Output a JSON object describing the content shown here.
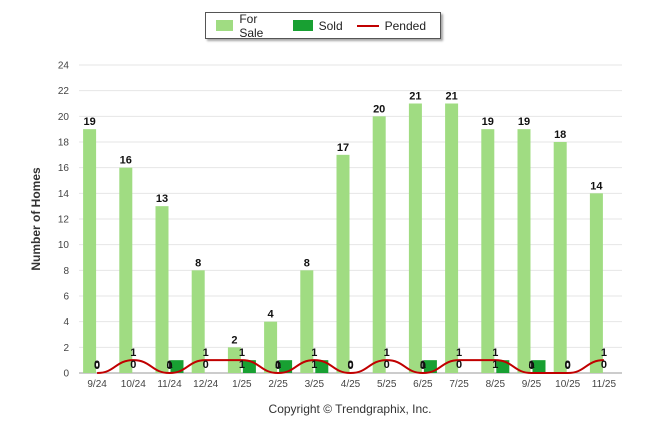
{
  "chart_data": {
    "type": "bar",
    "ylabel": "Number of Homes",
    "ylim": [
      0,
      24
    ],
    "yticks": [
      0,
      2,
      4,
      6,
      8,
      10,
      12,
      14,
      16,
      18,
      20,
      22,
      24
    ],
    "categories": [
      "9/24",
      "10/24",
      "11/24",
      "12/24",
      "1/25",
      "2/25",
      "3/25",
      "4/25",
      "5/25",
      "6/25",
      "7/25",
      "8/25",
      "9/25",
      "10/25",
      "11/25"
    ],
    "series": [
      {
        "name": "For Sale",
        "kind": "bar",
        "color": "#a0dc82",
        "values": [
          19,
          16,
          13,
          8,
          2,
          4,
          8,
          17,
          20,
          21,
          21,
          19,
          19,
          18,
          14
        ]
      },
      {
        "name": "Sold",
        "kind": "bar",
        "color": "#18a032",
        "values": [
          0,
          0,
          1,
          0,
          1,
          1,
          1,
          0,
          0,
          1,
          0,
          1,
          1,
          0,
          0
        ]
      },
      {
        "name": "Pended",
        "kind": "line",
        "color": "#c00000",
        "values": [
          0,
          1,
          0,
          1,
          1,
          0,
          1,
          0,
          1,
          0,
          1,
          1,
          0,
          0,
          1
        ]
      }
    ],
    "grid": true,
    "legend_position": "top-center"
  },
  "legend": {
    "for_sale": "For Sale",
    "sold": "Sold",
    "pended": "Pended"
  },
  "footer": {
    "copyright": "Copyright © Trendgraphix, Inc."
  }
}
